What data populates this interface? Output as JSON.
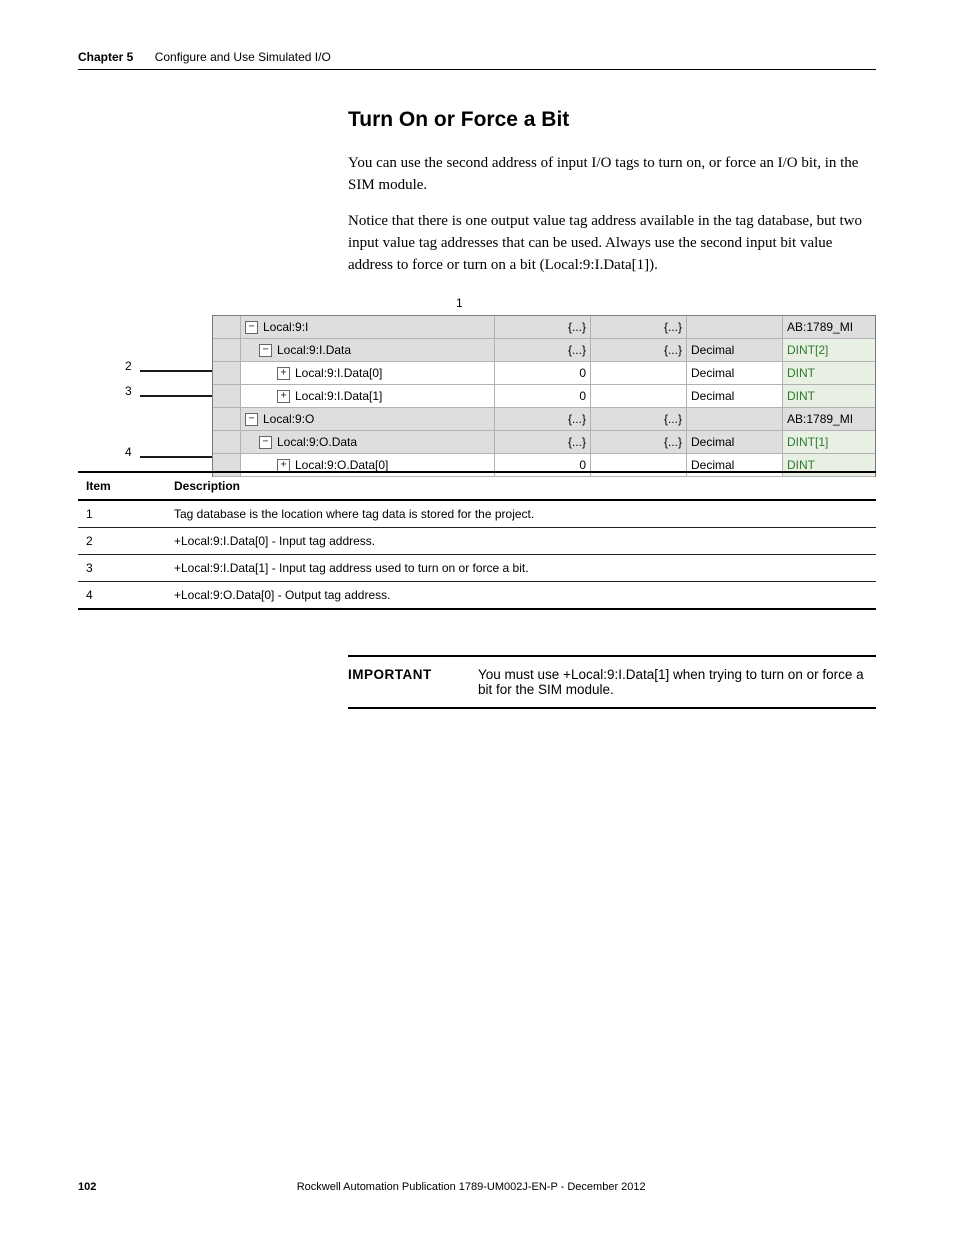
{
  "header": {
    "chapter": "Chapter 5",
    "title": "Configure and Use Simulated I/O"
  },
  "section_heading": "Turn On or Force a Bit",
  "para1": "You can use the second address of input I/O tags to turn on, or force an I/O bit, in the SIM module.",
  "para2": "Notice that there is one output value tag address available in the tag database, but two input value tag addresses that can be used. Always use the second input bit value address to force or turn on a bit (Local:9:I.Data[1]).",
  "callouts": {
    "n1": "1",
    "n2": "2",
    "n3": "3",
    "n4": "4"
  },
  "grid": {
    "rows": [
      {
        "indent": 0,
        "icon": "−",
        "name": "Local:9:I",
        "v1": "{...}",
        "v2": "{...}",
        "fmt": "",
        "type": "AB:1789_MI",
        "shade": true,
        "green": false
      },
      {
        "indent": 1,
        "icon": "−",
        "name": "Local:9:I.Data",
        "v1": "{...}",
        "v2": "{...}",
        "fmt": "Decimal",
        "type": "DINT[2]",
        "shade": true,
        "green": true
      },
      {
        "indent": 2,
        "icon": "+",
        "name": "Local:9:I.Data[0]",
        "v1": "0",
        "v2": "",
        "fmt": "Decimal",
        "type": "DINT",
        "shade": false,
        "green": true
      },
      {
        "indent": 2,
        "icon": "+",
        "name": "Local:9:I.Data[1]",
        "v1": "0",
        "v2": "",
        "fmt": "Decimal",
        "type": "DINT",
        "shade": false,
        "green": true
      },
      {
        "indent": 0,
        "icon": "−",
        "name": "Local:9:O",
        "v1": "{...}",
        "v2": "{...}",
        "fmt": "",
        "type": "AB:1789_MI",
        "shade": true,
        "green": false
      },
      {
        "indent": 1,
        "icon": "−",
        "name": "Local:9:O.Data",
        "v1": "{...}",
        "v2": "{...}",
        "fmt": "Decimal",
        "type": "DINT[1]",
        "shade": true,
        "green": true
      },
      {
        "indent": 2,
        "icon": "+",
        "name": "Local:9:O.Data[0]",
        "v1": "0",
        "v2": "",
        "fmt": "Decimal",
        "type": "DINT",
        "shade": false,
        "green": true
      }
    ]
  },
  "desc": {
    "head_item": "Item",
    "head_desc": "Description",
    "rows": [
      {
        "n": "1",
        "d": "Tag database is the location where tag data is stored for the project."
      },
      {
        "n": "2",
        "d": "+Local:9:I.Data[0] - Input tag address."
      },
      {
        "n": "3",
        "d": "+Local:9:I.Data[1] - Input tag address used to turn on or force a bit."
      },
      {
        "n": "4",
        "d": "+Local:9:O.Data[0] - Output tag address."
      }
    ]
  },
  "important": {
    "label": "IMPORTANT",
    "text": "You must use +Local:9:I.Data[1] when trying to turn on or force a bit for the SIM module."
  },
  "footer": {
    "page": "102",
    "pub": "Rockwell Automation Publication 1789-UM002J-EN-P - December 2012"
  },
  "style": {
    "grid_border": "#7a7a7a",
    "cell_border": "#b2b2b2",
    "shade": "#dedede",
    "green_fill": "#e8f0e4",
    "green_text": "#2d7a2d",
    "arrow": "#1a1a1a",
    "body_font_size": 15,
    "heading_font_size": 21,
    "sans_font_size": 12
  }
}
